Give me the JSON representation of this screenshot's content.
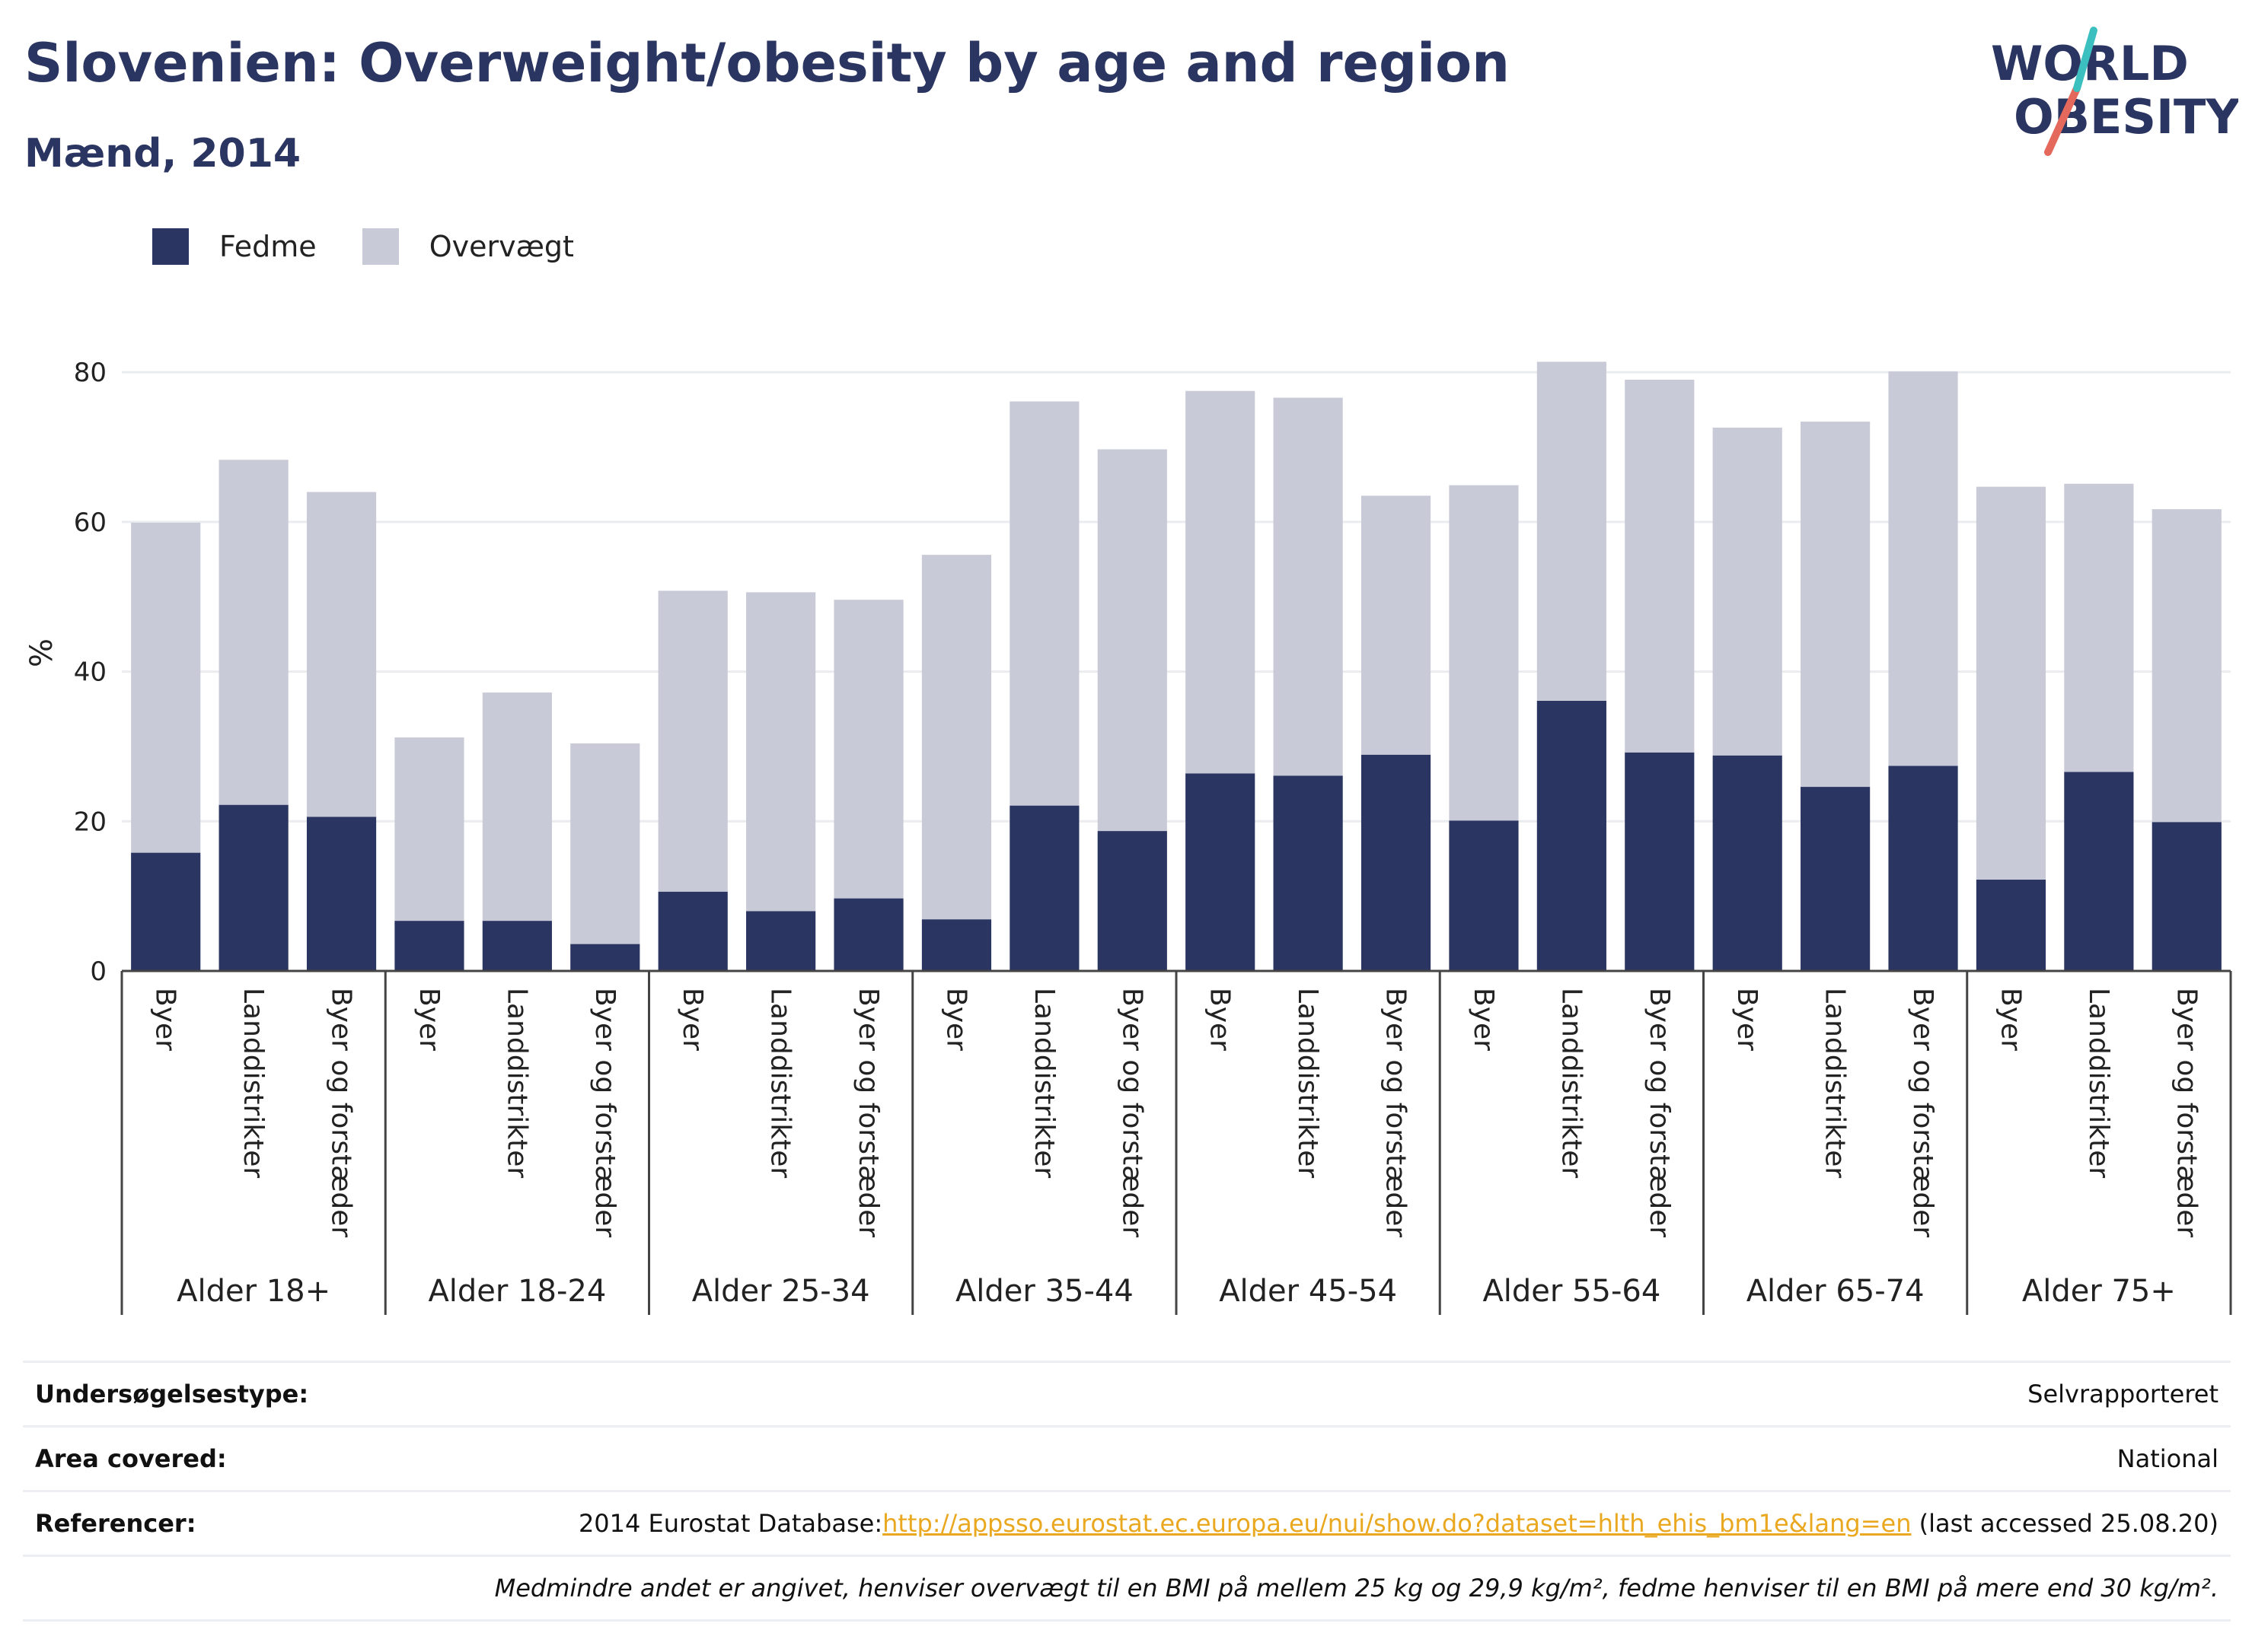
{
  "header": {
    "title": "Slovenien: Overweight/obesity by age and region",
    "subtitle": "Mænd, 2014"
  },
  "logo": {
    "line1": "WORLD",
    "line2": "OBESITY",
    "accent_color": "#e4685b",
    "accent_color2": "#3bbfbf"
  },
  "legend": [
    {
      "label": "Fedme",
      "color": "#2b3561"
    },
    {
      "label": "Overvægt",
      "color": "#c9cad7"
    }
  ],
  "chart_data": {
    "type": "bar",
    "stacked": true,
    "ylabel": "%",
    "ylim": [
      0,
      85
    ],
    "yticks": [
      0,
      20,
      40,
      60,
      80
    ],
    "grid": true,
    "legend_position": "top-left",
    "groups": [
      {
        "label": "Alder 18+",
        "categories": [
          "Byer",
          "Landdistrikter",
          "Byer og forstæder"
        ]
      },
      {
        "label": "Alder 18-24",
        "categories": [
          "Byer",
          "Landdistrikter",
          "Byer og forstæder"
        ]
      },
      {
        "label": "Alder 25-34",
        "categories": [
          "Byer",
          "Landdistrikter",
          "Byer og forstæder"
        ]
      },
      {
        "label": "Alder 35-44",
        "categories": [
          "Byer",
          "Landdistrikter",
          "Byer og forstæder"
        ]
      },
      {
        "label": "Alder 45-54",
        "categories": [
          "Byer",
          "Landdistrikter",
          "Byer og forstæder"
        ]
      },
      {
        "label": "Alder 55-64",
        "categories": [
          "Byer",
          "Landdistrikter",
          "Byer og forstæder"
        ]
      },
      {
        "label": "Alder 65-74",
        "categories": [
          "Byer",
          "Landdistrikter",
          "Byer og forstæder"
        ]
      },
      {
        "label": "Alder 75+",
        "categories": [
          "Byer",
          "Landdistrikter",
          "Byer og forstæder"
        ]
      }
    ],
    "series": [
      {
        "name": "Fedme",
        "color": "#2b3561",
        "values": [
          15.8,
          22.2,
          20.6,
          6.7,
          6.7,
          3.6,
          10.6,
          8.0,
          9.7,
          6.9,
          22.1,
          18.7,
          26.4,
          26.1,
          28.9,
          20.1,
          36.1,
          29.2,
          28.8,
          24.6,
          27.4,
          12.2,
          26.6,
          19.9
        ]
      },
      {
        "name": "Overvægt",
        "color": "#c9cad7",
        "values": [
          44.1,
          46.1,
          43.4,
          24.5,
          30.5,
          26.8,
          40.2,
          42.6,
          39.9,
          48.7,
          54.0,
          51.0,
          51.1,
          50.5,
          34.6,
          44.8,
          45.3,
          49.8,
          43.8,
          48.8,
          52.7,
          52.5,
          38.5,
          41.8
        ]
      }
    ]
  },
  "info": {
    "survey_type": {
      "key": "Undersøgelsestype:",
      "value": "Selvrapporteret"
    },
    "area": {
      "key": "Area covered:",
      "value": "National"
    },
    "references": {
      "key": "Referencer:",
      "prefix": "2014 Eurostat Database:",
      "link": "http://appsso.eurostat.ec.europa.eu/nui/show.do?dataset=hlth_ehis_bm1e&lang=en",
      "suffix": " (last accessed 25.08.20)"
    },
    "note": "Medmindre andet er angivet, henviser overvægt til en BMI på mellem 25 kg og 29,9 kg/m², fedme henviser til en BMI på mere end 30 kg/m²."
  }
}
